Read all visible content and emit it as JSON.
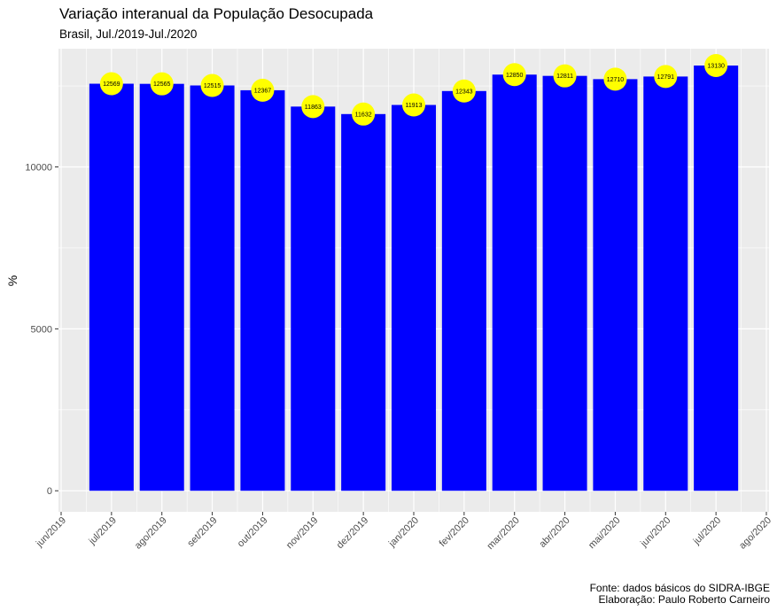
{
  "chart_data": {
    "type": "bar",
    "title": "Variação interanual da População Desocupada",
    "subtitle": "Brasil, Jul./2019-Jul./2020",
    "ylabel": "%",
    "xlabel": "",
    "categories": [
      "jul/2019",
      "ago/2019",
      "set/2019",
      "out/2019",
      "nov/2019",
      "dez/2019",
      "jan/2020",
      "fev/2020",
      "mar/2020",
      "abr/2020",
      "mai/2020",
      "jun/2020",
      "jul/2020"
    ],
    "values": [
      12569,
      12565,
      12515,
      12367,
      11863,
      11632,
      11913,
      12343,
      12850,
      12811,
      12710,
      12791,
      13130
    ],
    "value_labels": [
      "12569",
      "12565",
      "12515",
      "12367",
      "11863",
      "11632",
      "11913",
      "12343",
      "12850",
      "12811",
      "12710",
      "12791",
      "13130"
    ],
    "x_tick_labels": [
      "jun/2019",
      "jul/2019",
      "ago/2019",
      "set/2019",
      "out/2019",
      "nov/2019",
      "dez/2019",
      "jan/2020",
      "fev/2020",
      "mar/2020",
      "abr/2020",
      "mai/2020",
      "jun/2020",
      "jul/2020",
      "ago/2020"
    ],
    "y_ticks": [
      0,
      5000,
      10000
    ],
    "y_tick_labels": [
      "0",
      "5000",
      "10000"
    ],
    "ylim": [
      -650,
      13650
    ],
    "grid": true,
    "legend": "none",
    "colors": {
      "bar": "#0000FF",
      "label_marker": "#FFFF00",
      "panel": "#EBEBEB",
      "grid": "#FFFFFF"
    }
  },
  "caption": {
    "line1": "Fonte: dados básicos do SIDRA-IBGE",
    "line2": "Elaboração: Paulo Roberto Carneiro"
  }
}
